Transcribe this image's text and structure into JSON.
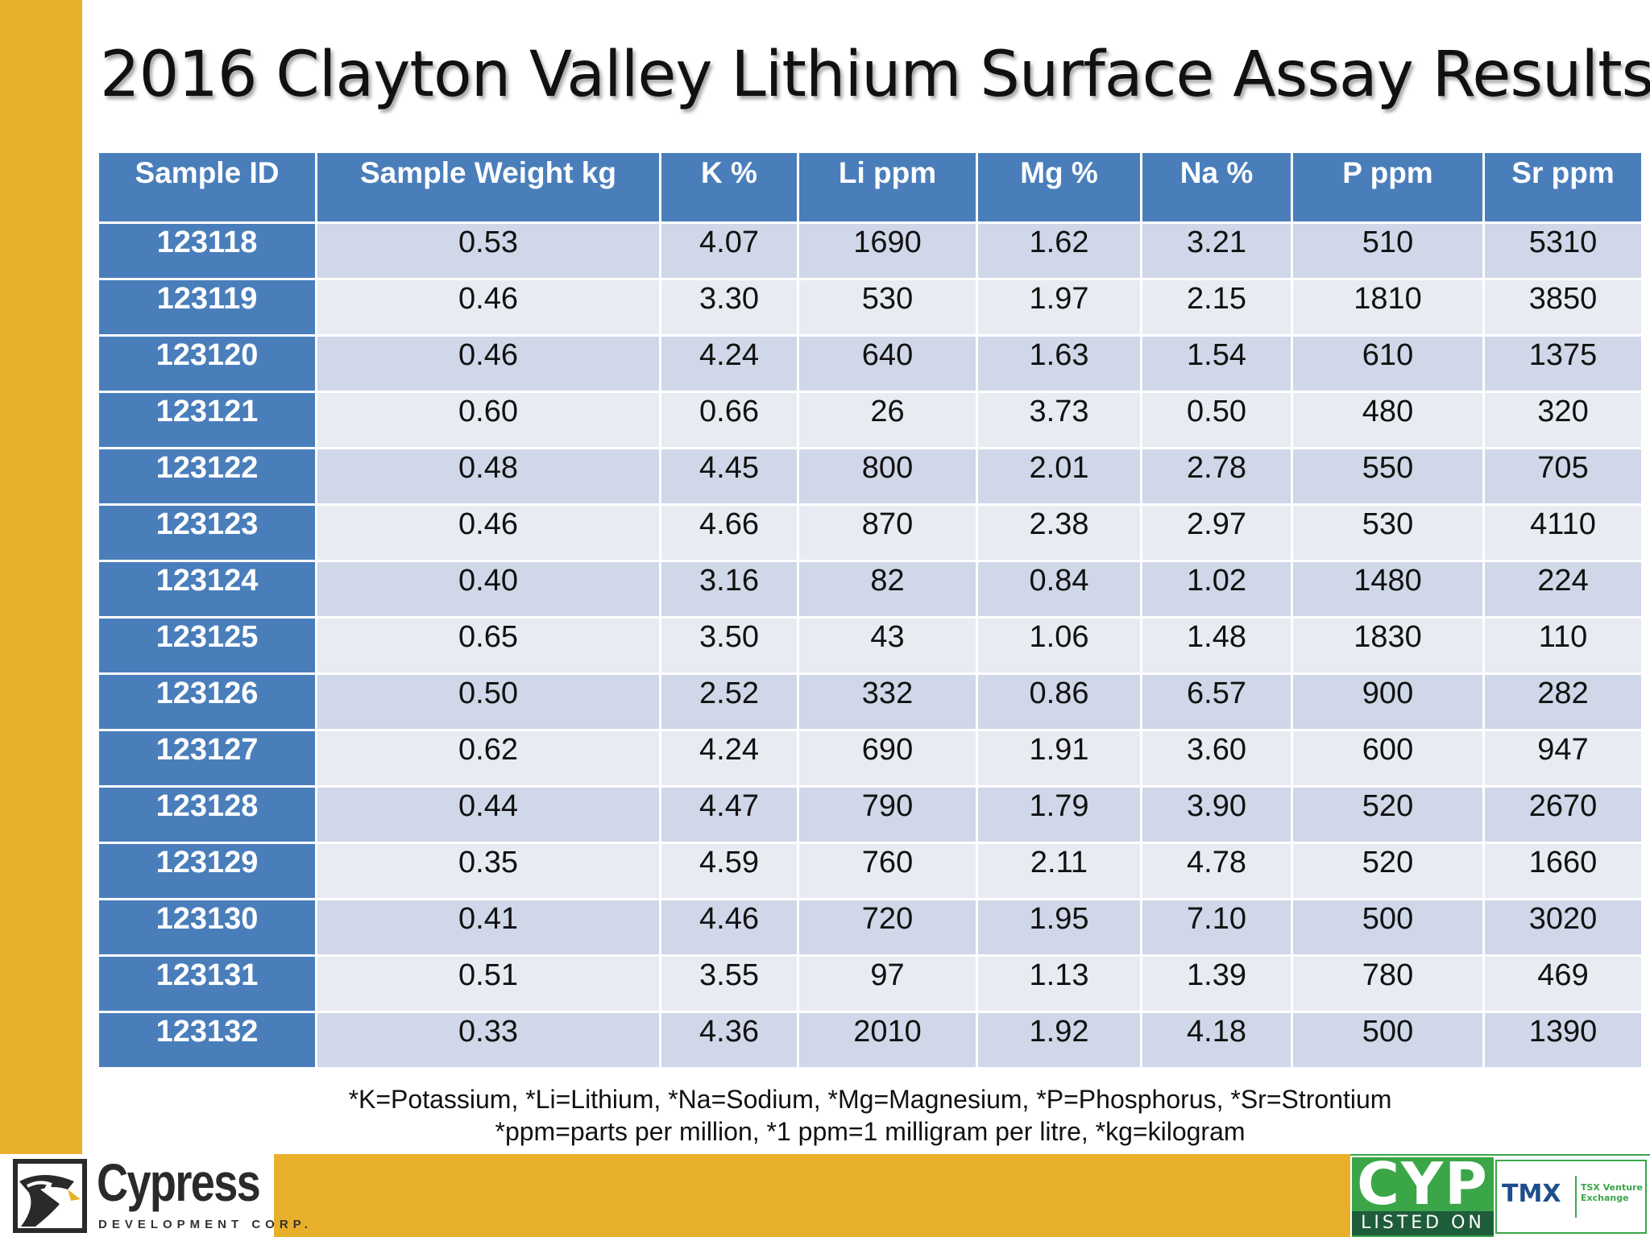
{
  "title": "2016 Clayton Valley Lithium Surface Assay Results",
  "table": {
    "headers": [
      "Sample ID",
      "Sample Weight kg",
      "K %",
      "Li ppm",
      "Mg %",
      "Na %",
      "P ppm",
      "Sr ppm"
    ],
    "rows": [
      [
        "123118",
        "0.53",
        "4.07",
        "1690",
        "1.62",
        "3.21",
        "510",
        "5310"
      ],
      [
        "123119",
        "0.46",
        "3.30",
        "530",
        "1.97",
        "2.15",
        "1810",
        "3850"
      ],
      [
        "123120",
        "0.46",
        "4.24",
        "640",
        "1.63",
        "1.54",
        "610",
        "1375"
      ],
      [
        "123121",
        "0.60",
        "0.66",
        "26",
        "3.73",
        "0.50",
        "480",
        "320"
      ],
      [
        "123122",
        "0.48",
        "4.45",
        "800",
        "2.01",
        "2.78",
        "550",
        "705"
      ],
      [
        "123123",
        "0.46",
        "4.66",
        "870",
        "2.38",
        "2.97",
        "530",
        "4110"
      ],
      [
        "123124",
        "0.40",
        "3.16",
        "82",
        "0.84",
        "1.02",
        "1480",
        "224"
      ],
      [
        "123125",
        "0.65",
        "3.50",
        "43",
        "1.06",
        "1.48",
        "1830",
        "110"
      ],
      [
        "123126",
        "0.50",
        "2.52",
        "332",
        "0.86",
        "6.57",
        "900",
        "282"
      ],
      [
        "123127",
        "0.62",
        "4.24",
        "690",
        "1.91",
        "3.60",
        "600",
        "947"
      ],
      [
        "123128",
        "0.44",
        "4.47",
        "790",
        "1.79",
        "3.90",
        "520",
        "2670"
      ],
      [
        "123129",
        "0.35",
        "4.59",
        "760",
        "2.11",
        "4.78",
        "520",
        "1660"
      ],
      [
        "123130",
        "0.41",
        "4.46",
        "720",
        "1.95",
        "7.10",
        "500",
        "3020"
      ],
      [
        "123131",
        "0.51",
        "3.55",
        "97",
        "1.13",
        "1.39",
        "780",
        "469"
      ],
      [
        "123132",
        "0.33",
        "4.36",
        "2010",
        "1.92",
        "4.18",
        "500",
        "1390"
      ]
    ]
  },
  "footnotes": {
    "line1": "*K=Potassium, *Li=Lithium, *Na=Sodium, *Mg=Magnesium, *P=Phosphorus, *Sr=Strontium",
    "line2": "*ppm=parts per million, *1 ppm=1 milligram per litre, *kg=kilogram"
  },
  "logo": {
    "name": "Cypress",
    "subtitle": "DEVELOPMENT CORP."
  },
  "listing": {
    "ticker": "CYP",
    "listed_on": "LISTED ON",
    "exchange_mark": "TMX",
    "exchange_name": "TSX Venture Exchange"
  },
  "colors": {
    "accent_gold": "#E8B02A",
    "header_blue": "#4A7EBB",
    "row_band_dark": "#CFD7E8",
    "row_band_light": "#E9EBF3",
    "listing_green": "#3AA648"
  },
  "icons": {
    "company_logo": "eagle-head-icon"
  }
}
